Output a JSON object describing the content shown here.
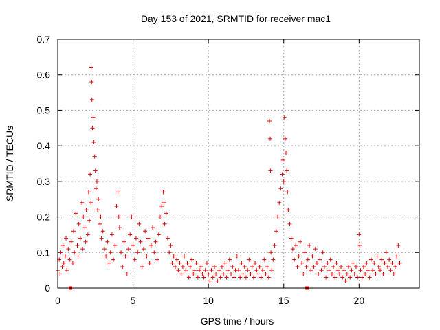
{
  "chart_data": {
    "type": "scatter",
    "title": "Day 153 of 2021, SRMTID for receiver mac1",
    "xlabel": "GPS time / hours",
    "ylabel": "SRMTID / TECUs",
    "xlim": [
      0,
      24
    ],
    "ylim": [
      0,
      0.7
    ],
    "xticks": [
      0,
      5,
      10,
      15,
      20
    ],
    "yticks": [
      0,
      0.1,
      0.2,
      0.3,
      0.4,
      0.5,
      0.6,
      0.7
    ],
    "xtick_labels": [
      "0",
      "5",
      "10",
      "15",
      "20"
    ],
    "ytick_labels": [
      "0",
      "0.1",
      "0.2",
      "0.3",
      "0.4",
      "0.5",
      "0.6",
      "0.7"
    ],
    "grid": true,
    "marker": "+",
    "color": "#e00000",
    "series": [
      {
        "name": "SRMTID",
        "points": [
          [
            0.0,
            0.05
          ],
          [
            0.1,
            0.08
          ],
          [
            0.15,
            0.04
          ],
          [
            0.2,
            0.1
          ],
          [
            0.3,
            0.06
          ],
          [
            0.35,
            0.12
          ],
          [
            0.4,
            0.07
          ],
          [
            0.5,
            0.09
          ],
          [
            0.55,
            0.14
          ],
          [
            0.6,
            0.05
          ],
          [
            0.7,
            0.11
          ],
          [
            0.8,
            0.08
          ],
          [
            0.9,
            0.13
          ],
          [
            1.0,
            0.07
          ],
          [
            1.05,
            0.16
          ],
          [
            1.1,
            0.1
          ],
          [
            1.2,
            0.21
          ],
          [
            1.3,
            0.12
          ],
          [
            1.35,
            0.09
          ],
          [
            1.4,
            0.18
          ],
          [
            1.5,
            0.14
          ],
          [
            1.6,
            0.24
          ],
          [
            1.65,
            0.11
          ],
          [
            1.7,
            0.2
          ],
          [
            1.8,
            0.17
          ],
          [
            1.85,
            0.13
          ],
          [
            1.9,
            0.22
          ],
          [
            2.0,
            0.15
          ],
          [
            2.05,
            0.27
          ],
          [
            2.1,
            0.19
          ],
          [
            2.15,
            0.32
          ],
          [
            2.2,
            0.24
          ],
          [
            2.22,
            0.62
          ],
          [
            2.25,
            0.58
          ],
          [
            2.27,
            0.53
          ],
          [
            2.3,
            0.45
          ],
          [
            2.35,
            0.48
          ],
          [
            2.4,
            0.41
          ],
          [
            2.45,
            0.37
          ],
          [
            2.5,
            0.33
          ],
          [
            2.55,
            0.28
          ],
          [
            2.6,
            0.3
          ],
          [
            2.65,
            0.22
          ],
          [
            2.7,
            0.25
          ],
          [
            2.8,
            0.18
          ],
          [
            2.85,
            0.2
          ],
          [
            2.9,
            0.14
          ],
          [
            3.0,
            0.16
          ],
          [
            3.1,
            0.11
          ],
          [
            3.2,
            0.09
          ],
          [
            3.3,
            0.13
          ],
          [
            3.4,
            0.07
          ],
          [
            3.5,
            0.1
          ],
          [
            3.6,
            0.15
          ],
          [
            3.7,
            0.08
          ],
          [
            3.8,
            0.12
          ],
          [
            3.9,
            0.23
          ],
          [
            4.0,
            0.27
          ],
          [
            4.05,
            0.2
          ],
          [
            4.1,
            0.17
          ],
          [
            4.2,
            0.1
          ],
          [
            4.3,
            0.06
          ],
          [
            4.4,
            0.13
          ],
          [
            4.5,
            0.09
          ],
          [
            4.6,
            0.04
          ],
          [
            4.7,
            0.11
          ],
          [
            4.8,
            0.15
          ],
          [
            4.9,
            0.2
          ],
          [
            5.0,
            0.12
          ],
          [
            5.1,
            0.08
          ],
          [
            5.2,
            0.14
          ],
          [
            5.3,
            0.1
          ],
          [
            5.4,
            0.18
          ],
          [
            5.5,
            0.13
          ],
          [
            5.6,
            0.06
          ],
          [
            5.7,
            0.11
          ],
          [
            5.8,
            0.16
          ],
          [
            5.9,
            0.09
          ],
          [
            6.0,
            0.14
          ],
          [
            6.1,
            0.07
          ],
          [
            6.2,
            0.12
          ],
          [
            6.3,
            0.17
          ],
          [
            6.4,
            0.1
          ],
          [
            6.5,
            0.13
          ],
          [
            6.6,
            0.08
          ],
          [
            6.7,
            0.15
          ],
          [
            6.8,
            0.2
          ],
          [
            6.9,
            0.23
          ],
          [
            7.0,
            0.27
          ],
          [
            7.05,
            0.24
          ],
          [
            7.1,
            0.18
          ],
          [
            7.2,
            0.21
          ],
          [
            7.3,
            0.14
          ],
          [
            7.4,
            0.1
          ],
          [
            7.5,
            0.12
          ],
          [
            7.6,
            0.07
          ],
          [
            7.7,
            0.09
          ],
          [
            7.8,
            0.06
          ],
          [
            7.9,
            0.08
          ],
          [
            8.0,
            0.05
          ],
          [
            8.1,
            0.07
          ],
          [
            8.2,
            0.04
          ],
          [
            8.3,
            0.06
          ],
          [
            8.4,
            0.09
          ],
          [
            8.5,
            0.05
          ],
          [
            8.6,
            0.07
          ],
          [
            8.7,
            0.03
          ],
          [
            8.8,
            0.06
          ],
          [
            8.9,
            0.08
          ],
          [
            9.0,
            0.04
          ],
          [
            9.1,
            0.05
          ],
          [
            9.2,
            0.07
          ],
          [
            9.3,
            0.03
          ],
          [
            9.4,
            0.05
          ],
          [
            9.5,
            0.06
          ],
          [
            9.6,
            0.04
          ],
          [
            9.7,
            0.03
          ],
          [
            9.8,
            0.05
          ],
          [
            9.9,
            0.07
          ],
          [
            10.0,
            0.04
          ],
          [
            10.1,
            0.02
          ],
          [
            10.2,
            0.05
          ],
          [
            10.3,
            0.03
          ],
          [
            10.4,
            0.06
          ],
          [
            10.5,
            0.04
          ],
          [
            10.6,
            0.02
          ],
          [
            10.7,
            0.05
          ],
          [
            10.8,
            0.03
          ],
          [
            10.9,
            0.06
          ],
          [
            11.0,
            0.04
          ],
          [
            11.1,
            0.07
          ],
          [
            11.2,
            0.03
          ],
          [
            11.3,
            0.05
          ],
          [
            11.4,
            0.08
          ],
          [
            11.5,
            0.04
          ],
          [
            11.6,
            0.06
          ],
          [
            11.7,
            0.03
          ],
          [
            11.8,
            0.05
          ],
          [
            11.9,
            0.09
          ],
          [
            12.0,
            0.05
          ],
          [
            12.1,
            0.03
          ],
          [
            12.2,
            0.07
          ],
          [
            12.3,
            0.04
          ],
          [
            12.4,
            0.06
          ],
          [
            12.5,
            0.03
          ],
          [
            12.6,
            0.05
          ],
          [
            12.7,
            0.08
          ],
          [
            12.8,
            0.04
          ],
          [
            12.9,
            0.06
          ],
          [
            13.0,
            0.03
          ],
          [
            13.1,
            0.07
          ],
          [
            13.2,
            0.05
          ],
          [
            13.3,
            0.04
          ],
          [
            13.4,
            0.06
          ],
          [
            13.5,
            0.03
          ],
          [
            13.6,
            0.05
          ],
          [
            13.7,
            0.08
          ],
          [
            13.8,
            0.04
          ],
          [
            13.9,
            0.06
          ],
          [
            14.0,
            0.03
          ],
          [
            14.05,
            0.47
          ],
          [
            14.1,
            0.42
          ],
          [
            14.12,
            0.33
          ],
          [
            14.15,
            0.1
          ],
          [
            14.2,
            0.05
          ],
          [
            14.3,
            0.08
          ],
          [
            14.4,
            0.12
          ],
          [
            14.5,
            0.16
          ],
          [
            14.6,
            0.2
          ],
          [
            14.7,
            0.24
          ],
          [
            14.8,
            0.28
          ],
          [
            14.9,
            0.32
          ],
          [
            14.95,
            0.36
          ],
          [
            15.0,
            0.3
          ],
          [
            15.05,
            0.48
          ],
          [
            15.1,
            0.42
          ],
          [
            15.15,
            0.38
          ],
          [
            15.2,
            0.33
          ],
          [
            15.25,
            0.27
          ],
          [
            15.3,
            0.22
          ],
          [
            15.4,
            0.18
          ],
          [
            15.5,
            0.14
          ],
          [
            15.6,
            0.11
          ],
          [
            15.7,
            0.08
          ],
          [
            15.8,
            0.12
          ],
          [
            15.9,
            0.06
          ],
          [
            16.0,
            0.09
          ],
          [
            16.1,
            0.13
          ],
          [
            16.2,
            0.07
          ],
          [
            16.3,
            0.04
          ],
          [
            16.4,
            0.1
          ],
          [
            16.5,
            0.06
          ],
          [
            16.6,
            0.08
          ],
          [
            16.7,
            0.12
          ],
          [
            16.8,
            0.05
          ],
          [
            16.9,
            0.09
          ],
          [
            17.0,
            0.06
          ],
          [
            17.1,
            0.11
          ],
          [
            17.2,
            0.07
          ],
          [
            17.3,
            0.04
          ],
          [
            17.4,
            0.08
          ],
          [
            17.5,
            0.05
          ],
          [
            17.6,
            0.1
          ],
          [
            17.7,
            0.06
          ],
          [
            17.8,
            0.03
          ],
          [
            17.9,
            0.07
          ],
          [
            18.0,
            0.05
          ],
          [
            18.1,
            0.08
          ],
          [
            18.2,
            0.04
          ],
          [
            18.3,
            0.06
          ],
          [
            18.4,
            0.03
          ],
          [
            18.5,
            0.07
          ],
          [
            18.6,
            0.05
          ],
          [
            18.7,
            0.04
          ],
          [
            18.8,
            0.06
          ],
          [
            18.9,
            0.03
          ],
          [
            19.0,
            0.05
          ],
          [
            19.1,
            0.02
          ],
          [
            19.2,
            0.04
          ],
          [
            19.3,
            0.06
          ],
          [
            19.4,
            0.03
          ],
          [
            19.5,
            0.05
          ],
          [
            19.6,
            0.07
          ],
          [
            19.7,
            0.04
          ],
          [
            19.8,
            0.06
          ],
          [
            19.9,
            0.03
          ],
          [
            20.0,
            0.15
          ],
          [
            20.05,
            0.12
          ],
          [
            20.1,
            0.05
          ],
          [
            20.2,
            0.03
          ],
          [
            20.3,
            0.06
          ],
          [
            20.4,
            0.04
          ],
          [
            20.5,
            0.07
          ],
          [
            20.6,
            0.05
          ],
          [
            20.7,
            0.03
          ],
          [
            20.8,
            0.08
          ],
          [
            20.9,
            0.05
          ],
          [
            21.0,
            0.07
          ],
          [
            21.1,
            0.04
          ],
          [
            21.2,
            0.09
          ],
          [
            21.3,
            0.06
          ],
          [
            21.4,
            0.05
          ],
          [
            21.5,
            0.08
          ],
          [
            21.6,
            0.04
          ],
          [
            21.7,
            0.07
          ],
          [
            21.8,
            0.1
          ],
          [
            21.9,
            0.06
          ],
          [
            22.0,
            0.08
          ],
          [
            22.1,
            0.05
          ],
          [
            22.2,
            0.07
          ],
          [
            22.3,
            0.04
          ],
          [
            22.4,
            0.06
          ],
          [
            22.5,
            0.09
          ],
          [
            22.6,
            0.12
          ],
          [
            22.7,
            0.07
          ]
        ]
      }
    ],
    "axis_markers": [
      0.85,
      16.55
    ]
  }
}
